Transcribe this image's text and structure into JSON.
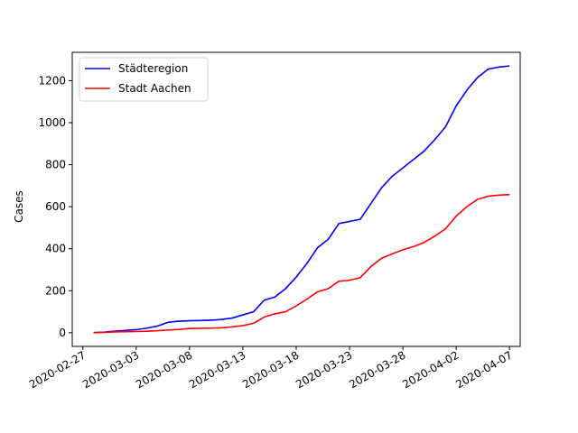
{
  "chart_data": {
    "type": "line",
    "title": "",
    "xlabel": "",
    "ylabel": "Cases",
    "x_ticks": [
      "2020-02-27",
      "2020-03-03",
      "2020-03-08",
      "2020-03-13",
      "2020-03-18",
      "2020-03-23",
      "2020-03-28",
      "2020-04-02",
      "2020-04-07"
    ],
    "y_ticks": [
      0,
      200,
      400,
      600,
      800,
      1000,
      1200
    ],
    "xlim": [
      "2020-02-26",
      "2020-04-08"
    ],
    "ylim": [
      -65,
      1335
    ],
    "grid": false,
    "legend_position": "top-left",
    "x": [
      "2020-02-28",
      "2020-02-29",
      "2020-03-01",
      "2020-03-02",
      "2020-03-03",
      "2020-03-04",
      "2020-03-05",
      "2020-03-06",
      "2020-03-07",
      "2020-03-08",
      "2020-03-09",
      "2020-03-10",
      "2020-03-11",
      "2020-03-12",
      "2020-03-13",
      "2020-03-14",
      "2020-03-15",
      "2020-03-16",
      "2020-03-17",
      "2020-03-18",
      "2020-03-19",
      "2020-03-20",
      "2020-03-21",
      "2020-03-22",
      "2020-03-23",
      "2020-03-24",
      "2020-03-25",
      "2020-03-26",
      "2020-03-27",
      "2020-03-28",
      "2020-03-29",
      "2020-03-30",
      "2020-03-31",
      "2020-04-01",
      "2020-04-02",
      "2020-04-03",
      "2020-04-04",
      "2020-04-05",
      "2020-04-06",
      "2020-04-07"
    ],
    "series": [
      {
        "name": "Städteregion",
        "color": "#0000ff",
        "values": [
          1,
          3,
          8,
          11,
          15,
          22,
          32,
          50,
          55,
          57,
          58,
          60,
          63,
          70,
          85,
          100,
          155,
          170,
          210,
          265,
          330,
          405,
          445,
          520,
          530,
          540,
          615,
          690,
          745,
          785,
          825,
          865,
          920,
          980,
          1080,
          1155,
          1215,
          1255,
          1265,
          1270
        ]
      },
      {
        "name": "Stadt Aachen",
        "color": "#ff0000",
        "values": [
          0,
          2,
          4,
          5,
          6,
          7,
          10,
          13,
          16,
          20,
          21,
          22,
          24,
          28,
          34,
          45,
          75,
          90,
          100,
          128,
          160,
          195,
          210,
          245,
          250,
          262,
          315,
          355,
          375,
          395,
          410,
          430,
          460,
          495,
          555,
          600,
          635,
          650,
          655,
          658
        ]
      }
    ]
  }
}
